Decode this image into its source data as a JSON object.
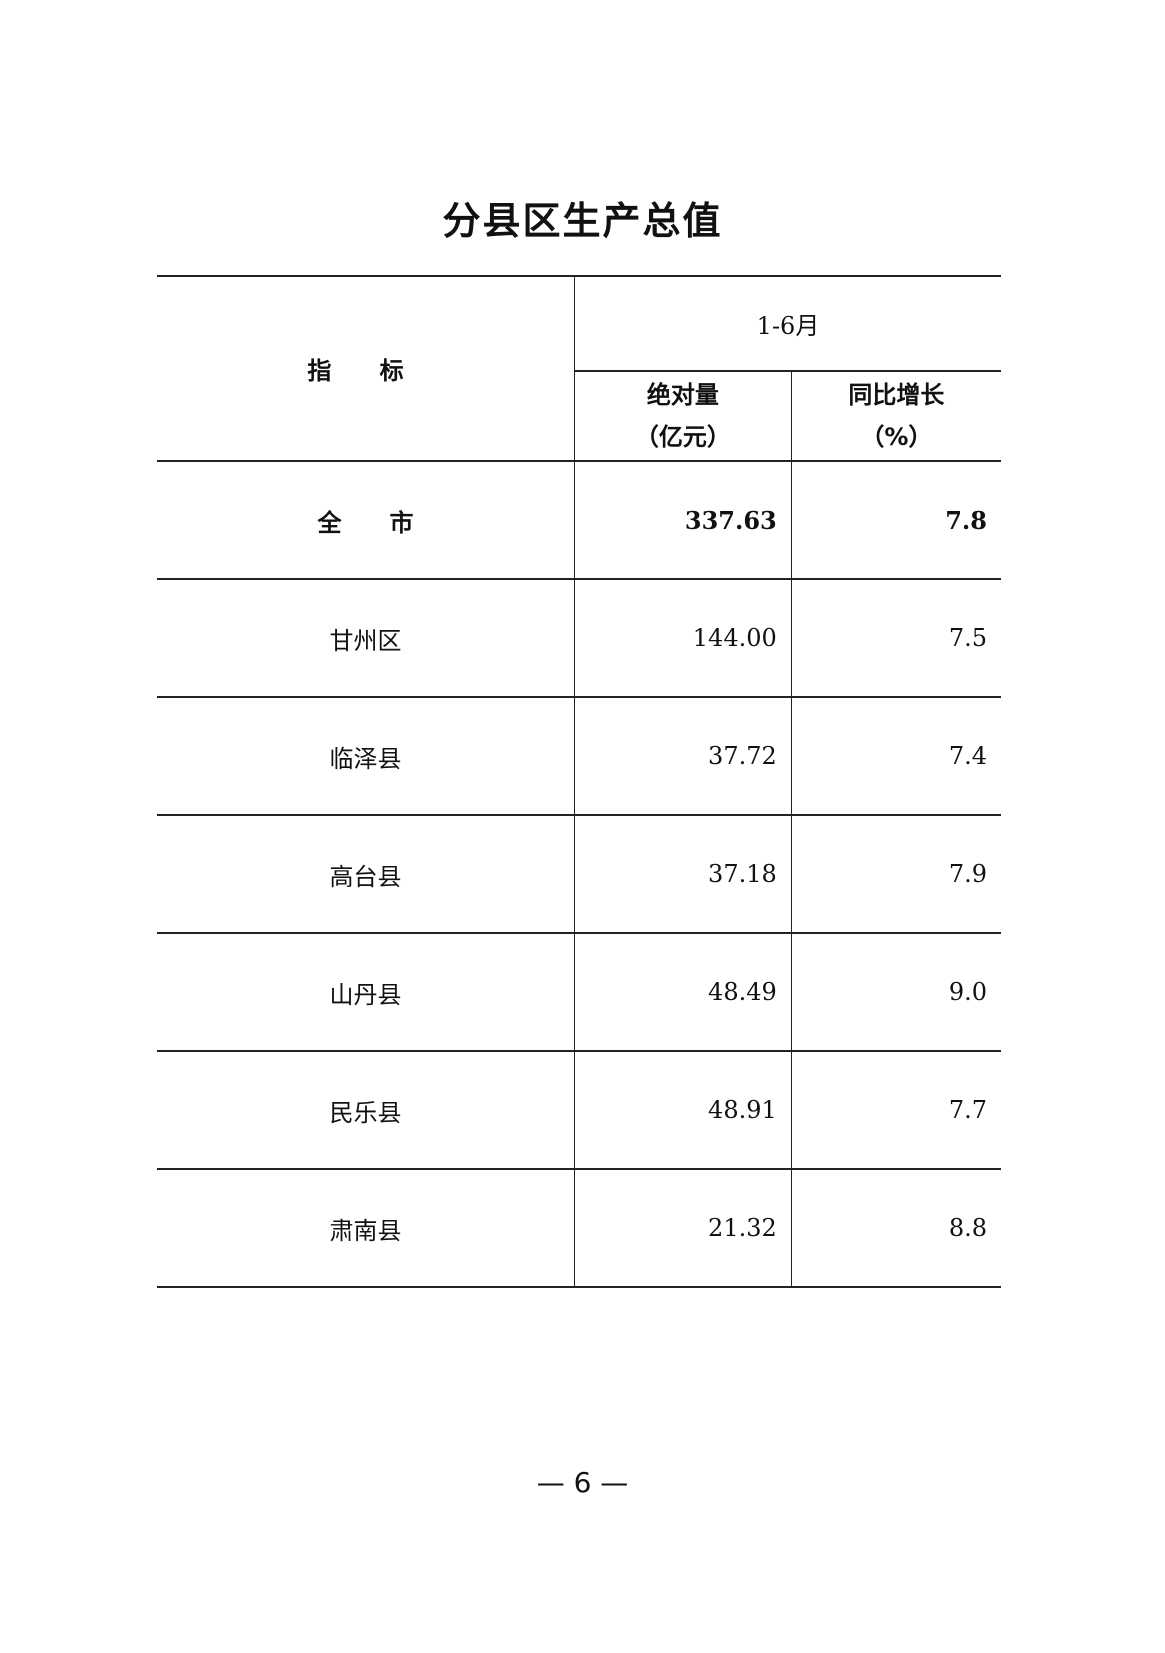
{
  "title": "分县区生产总值",
  "table": {
    "header": {
      "indicator": "指 标",
      "period": "1-6月",
      "col_value": {
        "line1": "绝对量",
        "line2": "（亿元）"
      },
      "col_growth": {
        "line1": "同比增长",
        "line2": "（%）"
      }
    },
    "rows": [
      {
        "name": "全　　市",
        "value": "337.63",
        "growth": "7.8"
      },
      {
        "name": "甘州区",
        "value": "144.00",
        "growth": "7.5"
      },
      {
        "name": "临泽县",
        "value": "37.72",
        "growth": "7.4"
      },
      {
        "name": "高台县",
        "value": "37.18",
        "growth": "7.9"
      },
      {
        "name": "山丹县",
        "value": "48.49",
        "growth": "9.0"
      },
      {
        "name": "民乐县",
        "value": "48.91",
        "growth": "7.7"
      },
      {
        "name": "肃南县",
        "value": "21.32",
        "growth": "8.8"
      }
    ]
  },
  "page_number": "— 6 —"
}
